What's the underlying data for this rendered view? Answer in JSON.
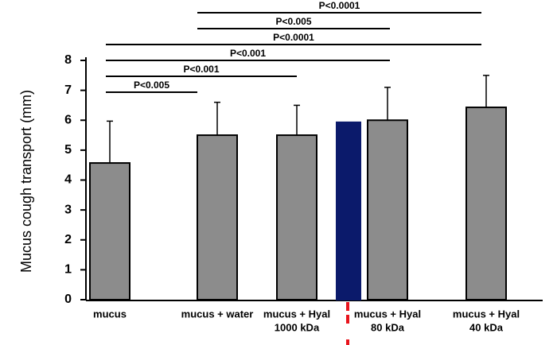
{
  "chart_data": {
    "type": "bar",
    "ylabel": "Mucus cough transport (mm)",
    "categories": [
      [
        "mucus"
      ],
      [
        "mucus + water"
      ],
      [
        "mucus + Hyal",
        "1000 kDa"
      ],
      null,
      [
        "mucus + Hyal",
        "80 kDa"
      ],
      [
        "mucus + Hyal",
        "40 kDa"
      ]
    ],
    "values": [
      4.57,
      5.5,
      5.5,
      5.93,
      6.0,
      6.43
    ],
    "errors": [
      1.4,
      1.1,
      1.0,
      null,
      1.1,
      1.07
    ],
    "colors": [
      "#8c8c8c",
      "#8c8c8c",
      "#8c8c8c",
      "#0b1a6b",
      "#8c8c8c",
      "#8c8c8c"
    ],
    "ylim": [
      0,
      8
    ],
    "yticks": [
      0,
      1,
      2,
      3,
      4,
      5,
      6,
      7,
      8
    ],
    "grid": false,
    "comparisons": [
      {
        "from": 1,
        "to": 5,
        "label": "P<0.0001"
      },
      {
        "from": 1,
        "to": 4,
        "label": "P<0.005"
      },
      {
        "from": 0,
        "to": 5,
        "label": "P<0.0001"
      },
      {
        "from": 0,
        "to": 4,
        "label": "P<0.001"
      },
      {
        "from": 0,
        "to": 2,
        "label": "P<0.001"
      },
      {
        "from": 0,
        "to": 1,
        "label": "P<0.005"
      }
    ]
  }
}
